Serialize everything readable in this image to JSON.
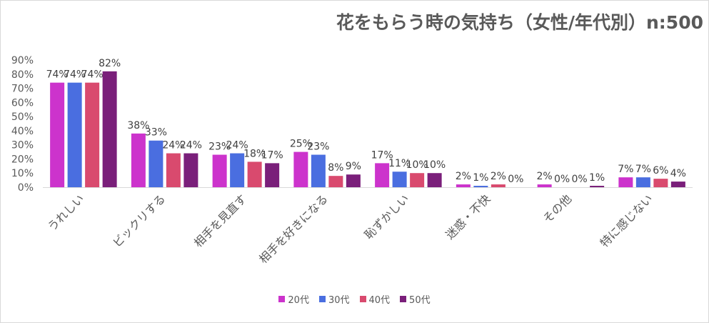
{
  "chart_data": {
    "type": "bar",
    "title": "花をもらう時の気持ち（女性/年代別）n:500",
    "categories": [
      "うれしい",
      "ビックリする",
      "相手を見直す",
      "相手を好きになる",
      "恥ずかしい",
      "迷惑・不快",
      "その他",
      "特に感じない"
    ],
    "series": [
      {
        "name": "20代",
        "color": "#cc33cc",
        "values": [
          74,
          38,
          23,
          25,
          17,
          2,
          2,
          7
        ]
      },
      {
        "name": "30代",
        "color": "#4a6ee0",
        "values": [
          74,
          33,
          24,
          23,
          11,
          1,
          0,
          7
        ]
      },
      {
        "name": "40代",
        "color": "#d94a6e",
        "values": [
          74,
          24,
          18,
          8,
          10,
          2,
          0,
          6
        ]
      },
      {
        "name": "50代",
        "color": "#7a1f7a",
        "values": [
          82,
          24,
          17,
          9,
          10,
          0,
          1,
          4
        ]
      }
    ],
    "ylim": [
      0,
      90
    ],
    "yticks": [
      "0%",
      "10%",
      "20%",
      "30%",
      "40%",
      "50%",
      "60%",
      "70%",
      "80%",
      "90%"
    ],
    "value_suffix": "%",
    "grid": false,
    "legend_position": "bottom"
  }
}
